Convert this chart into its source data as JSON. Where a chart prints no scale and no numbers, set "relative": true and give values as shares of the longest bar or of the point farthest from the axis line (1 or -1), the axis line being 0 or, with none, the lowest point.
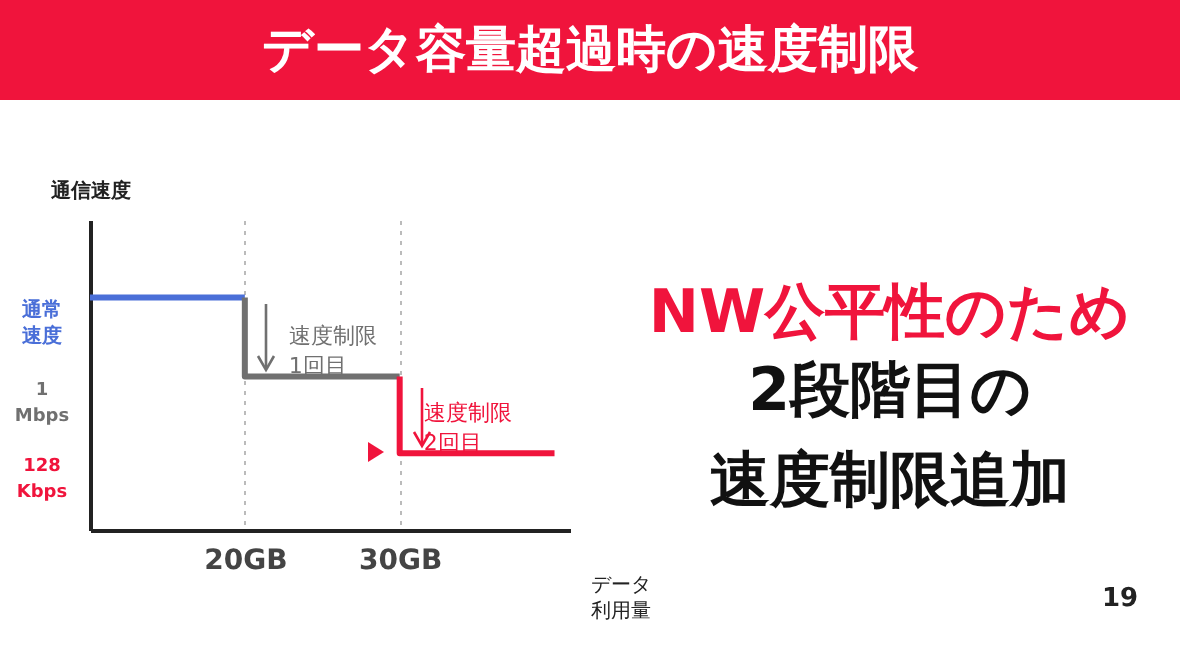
{
  "chart_data": {
    "type": "line",
    "title": "データ容量超過時の速度制限",
    "xlabel": "データ利用量",
    "ylabel": "通信速度",
    "relative": true,
    "xlim": [
      10,
      41
    ],
    "xticks": [
      {
        "value": 20,
        "label": "20GB"
      },
      {
        "value": 30,
        "label": "30GB"
      }
    ],
    "series": [
      {
        "color": "#4a6fd8",
        "x": [
          10,
          20
        ],
        "values": [
          1,
          1
        ]
      },
      {
        "color": "#707070",
        "x": [
          20,
          20,
          30
        ],
        "values": [
          1,
          0.66,
          0.66
        ]
      },
      {
        "color": "#f0143c",
        "x": [
          30,
          30,
          40
        ],
        "values": [
          0.66,
          0.33,
          0.33
        ]
      }
    ],
    "annotations": [
      "通常速度",
      "1 Mbps",
      "128 Kbps",
      {
        "text": "速度制限1回目",
        "x": 20,
        "y": 0.83
      },
      {
        "text": "速度制限2回目",
        "x": 30,
        "y": 0.5
      },
      "NW公平性のため",
      "2段階目の速度制限追加",
      "19"
    ],
    "grid": "x",
    "line_style": "solid"
  }
}
